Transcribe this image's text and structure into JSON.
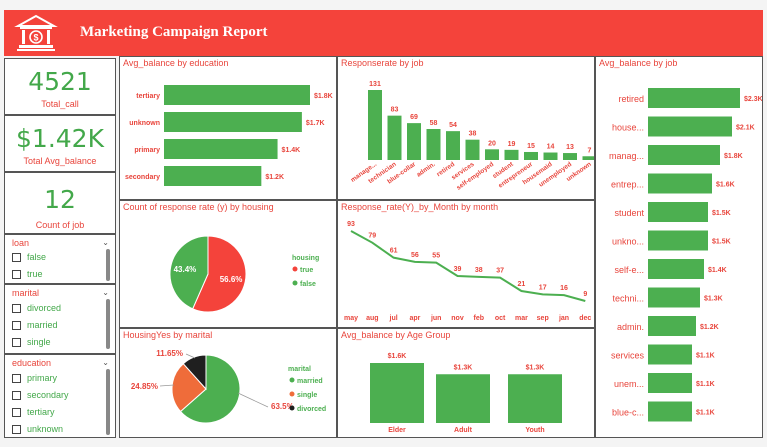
{
  "header": {
    "title": "Marketing Campaign Report"
  },
  "kpis": [
    {
      "value": "4521",
      "label": "Total_call"
    },
    {
      "value": "$1.42K",
      "label": "Total Avg_balance"
    },
    {
      "value": "12",
      "label": "Count of job"
    }
  ],
  "slicers": {
    "loan": {
      "title": "loan",
      "items": [
        "false",
        "true"
      ]
    },
    "marital": {
      "title": "marital",
      "items": [
        "divorced",
        "married",
        "single"
      ]
    },
    "education": {
      "title": "education",
      "items": [
        "primary",
        "secondary",
        "tertiary",
        "unknown"
      ]
    }
  },
  "colors": {
    "accent": "#f4433b",
    "green": "#4caf50",
    "orange": "#ef6c3a",
    "dark": "#1f1f1f",
    "label": "#e8453c"
  },
  "panels": {
    "edu": "Avg_balance by education",
    "resp_job": "Responserate by job",
    "bal_job": "Avg_balance by job",
    "housing": "Count of response rate (y) by housing",
    "month": "Response_rate(Y)_by_Month by month",
    "marital": "HousingYes by marital",
    "age": "Avg_balance by Age Group"
  },
  "chart_data": [
    {
      "id": "edu",
      "type": "bar",
      "orientation": "horizontal",
      "title": "Avg_balance by education",
      "categories": [
        "tertiary",
        "unknown",
        "primary",
        "secondary"
      ],
      "values": [
        1.8,
        1.7,
        1.4,
        1.2
      ],
      "labels": [
        "$1.8K",
        "$1.7K",
        "$1.4K",
        "$1.2K"
      ]
    },
    {
      "id": "resp_job",
      "type": "bar",
      "title": "Responserate by job",
      "categories": [
        "manage...",
        "technician",
        "blue-collar",
        "admin.",
        "retired",
        "services",
        "self-employed",
        "student",
        "entrepreneur",
        "housemaid",
        "unemployed",
        "unknown"
      ],
      "values": [
        131,
        83,
        69,
        58,
        54,
        38,
        20,
        19,
        15,
        14,
        13,
        7
      ]
    },
    {
      "id": "bal_job",
      "type": "bar",
      "orientation": "horizontal",
      "title": "Avg_balance by job",
      "categories": [
        "retired",
        "house...",
        "manag...",
        "entrep...",
        "student",
        "unkno...",
        "self-e...",
        "techni...",
        "admin.",
        "services",
        "unem...",
        "blue-c..."
      ],
      "values": [
        2.3,
        2.1,
        1.8,
        1.6,
        1.5,
        1.5,
        1.4,
        1.3,
        1.2,
        1.1,
        1.1,
        1.1
      ],
      "labels": [
        "$2.3K",
        "$2.1K",
        "$1.8K",
        "$1.6K",
        "$1.5K",
        "$1.5K",
        "$1.4K",
        "$1.3K",
        "$1.2K",
        "$1.1K",
        "$1.1K",
        "$1.1K"
      ]
    },
    {
      "id": "housing",
      "type": "pie",
      "title": "Count of response rate (y) by housing",
      "legend_title": "housing",
      "slices": [
        {
          "name": "true",
          "value": 56.6,
          "label": "56.6%",
          "color": "#f4433b"
        },
        {
          "name": "false",
          "value": 43.4,
          "label": "43.4%",
          "color": "#4caf50"
        }
      ]
    },
    {
      "id": "month",
      "type": "line",
      "title": "Response_rate(Y)_by_Month by month",
      "x": [
        "may",
        "aug",
        "jul",
        "apr",
        "jun",
        "nov",
        "feb",
        "oct",
        "mar",
        "sep",
        "jan",
        "dec"
      ],
      "values": [
        93,
        79,
        61,
        56,
        55,
        39,
        38,
        37,
        21,
        17,
        16,
        9
      ]
    },
    {
      "id": "marital",
      "type": "pie",
      "title": "HousingYes by marital",
      "legend_title": "marital",
      "slices": [
        {
          "name": "married",
          "value": 63.5,
          "label": "63.5%",
          "color": "#4caf50"
        },
        {
          "name": "single",
          "value": 24.85,
          "label": "24.85%",
          "color": "#ef6c3a"
        },
        {
          "name": "divorced",
          "value": 11.65,
          "label": "11.65%",
          "color": "#1f1f1f"
        }
      ]
    },
    {
      "id": "age",
      "type": "bar",
      "title": "Avg_balance by Age Group",
      "categories": [
        "Elder",
        "Adult",
        "Youth"
      ],
      "values": [
        1.6,
        1.3,
        1.3
      ],
      "labels": [
        "$1.6K",
        "$1.3K",
        "$1.3K"
      ]
    }
  ]
}
